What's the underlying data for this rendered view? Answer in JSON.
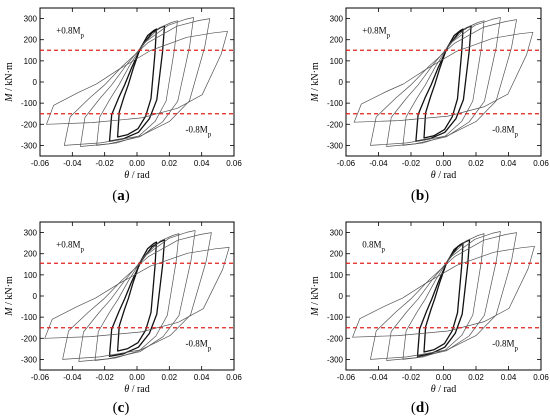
{
  "chart_data": [
    {
      "type": "line",
      "caption": "(a)",
      "xlabel": "θ / rad",
      "ylabel": "M / kN·m",
      "xlim": [
        -0.06,
        0.06
      ],
      "ylim": [
        -350,
        350
      ],
      "xticks": [
        "-0.06",
        "-0.04",
        "-0.02",
        "0.00",
        "0.02",
        "0.04",
        "0.06"
      ],
      "yticks": [
        "-300",
        "-200",
        "-100",
        "0",
        "100",
        "200",
        "300"
      ],
      "reference_lines": [
        {
          "label": "+0.8M",
          "sub": "p",
          "y": 150
        },
        {
          "label": "-0.8M",
          "sub": "p",
          "y": -150
        }
      ],
      "annotations": [
        {
          "text": "+0.8M",
          "sub": "p",
          "x": -0.05,
          "y": 230
        },
        {
          "text": "-0.8M",
          "sub": "p",
          "x": 0.03,
          "y": -240
        }
      ],
      "loops": [
        {
          "amplitude": 0.012,
          "Mpos": 250,
          "Mneg": -260,
          "bold": true
        },
        {
          "amplitude": 0.017,
          "Mpos": 265,
          "Mneg": -280,
          "bold": true
        },
        {
          "amplitude": 0.025,
          "Mpos": 290,
          "Mneg": -300,
          "bold": false
        },
        {
          "amplitude": 0.035,
          "Mpos": 305,
          "Mneg": -305,
          "bold": false
        },
        {
          "amplitude": 0.045,
          "Mpos": 300,
          "Mneg": -300,
          "bold": false
        },
        {
          "amplitude": 0.056,
          "Mpos": 240,
          "Mneg": -200,
          "bold": false
        }
      ]
    },
    {
      "type": "line",
      "caption": "(b)",
      "xlabel": "θ / rad",
      "ylabel": "M / kN·m",
      "xlim": [
        -0.06,
        0.06
      ],
      "ylim": [
        -350,
        350
      ],
      "xticks": [
        "-0.06",
        "-0.04",
        "-0.02",
        "0.00",
        "0.02",
        "0.04",
        "0.06"
      ],
      "yticks": [
        "-300",
        "-200",
        "-100",
        "0",
        "100",
        "200",
        "300"
      ],
      "reference_lines": [
        {
          "label": "+0.8M",
          "sub": "p",
          "y": 150
        },
        {
          "label": "-0.8M",
          "sub": "p",
          "y": -150
        }
      ],
      "annotations": [
        {
          "text": "+0.8M",
          "sub": "p",
          "x": -0.05,
          "y": 230
        },
        {
          "text": "-0.8M",
          "sub": "p",
          "x": 0.03,
          "y": -240
        }
      ],
      "loops": [
        {
          "amplitude": 0.012,
          "Mpos": 250,
          "Mneg": -265,
          "bold": true
        },
        {
          "amplitude": 0.017,
          "Mpos": 265,
          "Mneg": -280,
          "bold": true
        },
        {
          "amplitude": 0.025,
          "Mpos": 290,
          "Mneg": -300,
          "bold": false
        },
        {
          "amplitude": 0.035,
          "Mpos": 305,
          "Mneg": -305,
          "bold": false
        },
        {
          "amplitude": 0.045,
          "Mpos": 295,
          "Mneg": -300,
          "bold": false
        },
        {
          "amplitude": 0.055,
          "Mpos": 235,
          "Mneg": -190,
          "bold": false
        }
      ]
    },
    {
      "type": "line",
      "caption": "(c)",
      "xlabel": "θ / rad",
      "ylabel": "M / kN·m",
      "xlim": [
        -0.06,
        0.06
      ],
      "ylim": [
        -350,
        350
      ],
      "xticks": [
        "-0.06",
        "-0.04",
        "-0.02",
        "0.00",
        "0.02",
        "0.04",
        "0.06"
      ],
      "yticks": [
        "-300",
        "-200",
        "-100",
        "0",
        "100",
        "200",
        "300"
      ],
      "reference_lines": [
        {
          "label": "+0.8M",
          "sub": "p",
          "y": 155
        },
        {
          "label": "-0.8M",
          "sub": "p",
          "y": -150
        }
      ],
      "annotations": [
        {
          "text": "+0.8M",
          "sub": "p",
          "x": -0.05,
          "y": 230
        },
        {
          "text": "-0.8M",
          "sub": "p",
          "x": 0.03,
          "y": -240
        }
      ],
      "loops": [
        {
          "amplitude": 0.012,
          "Mpos": 255,
          "Mneg": -260,
          "bold": true
        },
        {
          "amplitude": 0.017,
          "Mpos": 265,
          "Mneg": -285,
          "bold": true
        },
        {
          "amplitude": 0.026,
          "Mpos": 295,
          "Mneg": -305,
          "bold": false
        },
        {
          "amplitude": 0.036,
          "Mpos": 310,
          "Mneg": -310,
          "bold": false
        },
        {
          "amplitude": 0.046,
          "Mpos": 300,
          "Mneg": -300,
          "bold": false
        },
        {
          "amplitude": 0.057,
          "Mpos": 230,
          "Mneg": -200,
          "bold": false
        }
      ]
    },
    {
      "type": "line",
      "caption": "(d)",
      "xlabel": "θ / rad",
      "ylabel": "M / kN·m",
      "xlim": [
        -0.06,
        0.06
      ],
      "ylim": [
        -350,
        350
      ],
      "xticks": [
        "-0.06",
        "-0.04",
        "-0.02",
        "0.00",
        "0.02",
        "0.04",
        "0.06"
      ],
      "yticks": [
        "-300",
        "-200",
        "-100",
        "0",
        "100",
        "200",
        "300"
      ],
      "reference_lines": [
        {
          "label": "0.8M",
          "sub": "p",
          "y": 155
        },
        {
          "label": "-0.8M",
          "sub": "p",
          "y": -150
        }
      ],
      "annotations": [
        {
          "text": "0.8M",
          "sub": "p",
          "x": -0.05,
          "y": 230
        },
        {
          "text": "-0.8M",
          "sub": "p",
          "x": 0.03,
          "y": -240
        }
      ],
      "loops": [
        {
          "amplitude": 0.012,
          "Mpos": 250,
          "Mneg": -265,
          "bold": true
        },
        {
          "amplitude": 0.016,
          "Mpos": 265,
          "Mneg": -285,
          "bold": true
        },
        {
          "amplitude": 0.025,
          "Mpos": 295,
          "Mneg": -300,
          "bold": false
        },
        {
          "amplitude": 0.035,
          "Mpos": 305,
          "Mneg": -305,
          "bold": false
        },
        {
          "amplitude": 0.045,
          "Mpos": 300,
          "Mneg": -300,
          "bold": false
        },
        {
          "amplitude": 0.056,
          "Mpos": 235,
          "Mneg": -195,
          "bold": false
        }
      ]
    }
  ]
}
